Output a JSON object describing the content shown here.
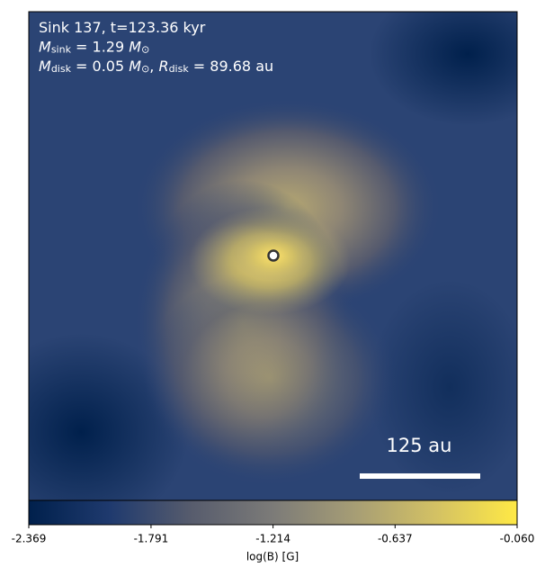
{
  "chart_data": {
    "type": "image",
    "annotations": [
      [
        {
          "t": "Sink 137, t=123.36 kyr"
        }
      ],
      [
        {
          "t": "M",
          "italic": true
        },
        {
          "t": "sink",
          "sub": true
        },
        {
          "t": " = 1.29 "
        },
        {
          "t": "M",
          "italic": true
        },
        {
          "t": "⊙",
          "sub": true
        }
      ],
      [
        {
          "t": "M",
          "italic": true
        },
        {
          "t": "disk",
          "sub": true
        },
        {
          "t": " = 0.05 "
        },
        {
          "t": "M",
          "italic": true
        },
        {
          "t": "⊙",
          "sub": true
        },
        {
          "t": ", "
        },
        {
          "t": "R",
          "italic": true
        },
        {
          "t": "disk",
          "sub": true
        },
        {
          "t": " = 89.68 au"
        }
      ]
    ],
    "scale_bar_label": "125 au",
    "colorbar": {
      "label": "log(B) [G]",
      "lim": [
        -2.369,
        -0.06
      ],
      "ticks": [
        -2.369,
        -1.791,
        -1.214,
        -0.637,
        {
          "value": -0.06,
          "label": "-0.060"
        }
      ],
      "colormap": [
        "#00204c",
        "#1f3a6e",
        "#575c6d",
        "#7c7b78",
        "#a69d75",
        "#d3c164",
        "#ffe945"
      ]
    }
  }
}
